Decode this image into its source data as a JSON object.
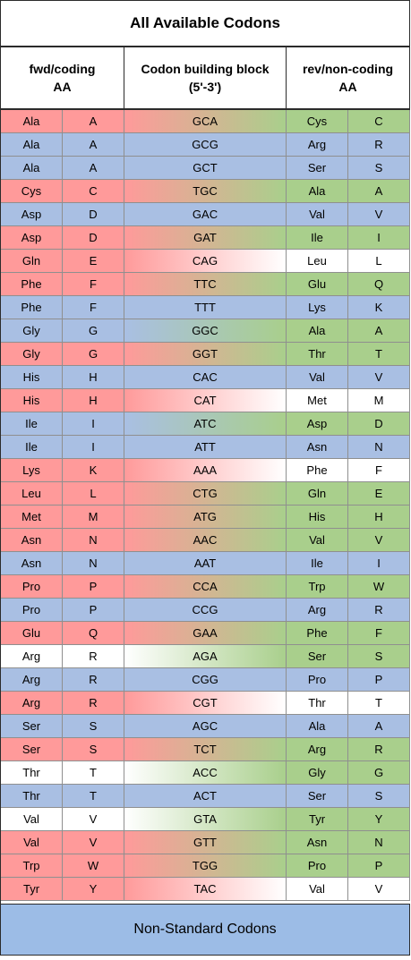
{
  "title": "All Available Codons",
  "headers": {
    "fwd_line1": "fwd/coding",
    "fwd_line2": "AA",
    "mid_line1": "Codon building block",
    "mid_line2": "(5'-3')",
    "rev_line1": "rev/non-coding",
    "rev_line2": "AA"
  },
  "colors": {
    "red": "#ff9a9a",
    "blue": "#a9bfe3",
    "green": "#a9cf8c",
    "white": "#ffffff",
    "footer": "#9cbce6"
  },
  "rows": [
    {
      "fwd_aa": "Ala",
      "fwd_code": "A",
      "codon": "GCA",
      "rev_aa": "Cys",
      "rev_code": "C",
      "fwd_color": "red",
      "rev_color": "green"
    },
    {
      "fwd_aa": "Ala",
      "fwd_code": "A",
      "codon": "GCG",
      "rev_aa": "Arg",
      "rev_code": "R",
      "fwd_color": "blue",
      "rev_color": "blue"
    },
    {
      "fwd_aa": "Ala",
      "fwd_code": "A",
      "codon": "GCT",
      "rev_aa": "Ser",
      "rev_code": "S",
      "fwd_color": "blue",
      "rev_color": "blue"
    },
    {
      "fwd_aa": "Cys",
      "fwd_code": "C",
      "codon": "TGC",
      "rev_aa": "Ala",
      "rev_code": "A",
      "fwd_color": "red",
      "rev_color": "green"
    },
    {
      "fwd_aa": "Asp",
      "fwd_code": "D",
      "codon": "GAC",
      "rev_aa": "Val",
      "rev_code": "V",
      "fwd_color": "blue",
      "rev_color": "blue"
    },
    {
      "fwd_aa": "Asp",
      "fwd_code": "D",
      "codon": "GAT",
      "rev_aa": "Ile",
      "rev_code": "I",
      "fwd_color": "red",
      "rev_color": "green"
    },
    {
      "fwd_aa": "Gln",
      "fwd_code": "E",
      "codon": "CAG",
      "rev_aa": "Leu",
      "rev_code": "L",
      "fwd_color": "red",
      "rev_color": "white"
    },
    {
      "fwd_aa": "Phe",
      "fwd_code": "F",
      "codon": "TTC",
      "rev_aa": "Glu",
      "rev_code": "Q",
      "fwd_color": "red",
      "rev_color": "green"
    },
    {
      "fwd_aa": "Phe",
      "fwd_code": "F",
      "codon": "TTT",
      "rev_aa": "Lys",
      "rev_code": "K",
      "fwd_color": "blue",
      "rev_color": "blue"
    },
    {
      "fwd_aa": "Gly",
      "fwd_code": "G",
      "codon": "GGC",
      "rev_aa": "Ala",
      "rev_code": "A",
      "fwd_color": "blue",
      "rev_color": "green"
    },
    {
      "fwd_aa": "Gly",
      "fwd_code": "G",
      "codon": "GGT",
      "rev_aa": "Thr",
      "rev_code": "T",
      "fwd_color": "red",
      "rev_color": "green"
    },
    {
      "fwd_aa": "His",
      "fwd_code": "H",
      "codon": "CAC",
      "rev_aa": "Val",
      "rev_code": "V",
      "fwd_color": "blue",
      "rev_color": "blue"
    },
    {
      "fwd_aa": "His",
      "fwd_code": "H",
      "codon": "CAT",
      "rev_aa": "Met",
      "rev_code": "M",
      "fwd_color": "red",
      "rev_color": "white"
    },
    {
      "fwd_aa": "Ile",
      "fwd_code": "I",
      "codon": "ATC",
      "rev_aa": "Asp",
      "rev_code": "D",
      "fwd_color": "blue",
      "rev_color": "green"
    },
    {
      "fwd_aa": "Ile",
      "fwd_code": "I",
      "codon": "ATT",
      "rev_aa": "Asn",
      "rev_code": "N",
      "fwd_color": "blue",
      "rev_color": "blue"
    },
    {
      "fwd_aa": "Lys",
      "fwd_code": "K",
      "codon": "AAA",
      "rev_aa": "Phe",
      "rev_code": "F",
      "fwd_color": "red",
      "rev_color": "white"
    },
    {
      "fwd_aa": "Leu",
      "fwd_code": "L",
      "codon": "CTG",
      "rev_aa": "Gln",
      "rev_code": "E",
      "fwd_color": "red",
      "rev_color": "green"
    },
    {
      "fwd_aa": "Met",
      "fwd_code": "M",
      "codon": "ATG",
      "rev_aa": "His",
      "rev_code": "H",
      "fwd_color": "red",
      "rev_color": "green"
    },
    {
      "fwd_aa": "Asn",
      "fwd_code": "N",
      "codon": "AAC",
      "rev_aa": "Val",
      "rev_code": "V",
      "fwd_color": "red",
      "rev_color": "green"
    },
    {
      "fwd_aa": "Asn",
      "fwd_code": "N",
      "codon": "AAT",
      "rev_aa": "Ile",
      "rev_code": "I",
      "fwd_color": "blue",
      "rev_color": "blue"
    },
    {
      "fwd_aa": "Pro",
      "fwd_code": "P",
      "codon": "CCA",
      "rev_aa": "Trp",
      "rev_code": "W",
      "fwd_color": "red",
      "rev_color": "green"
    },
    {
      "fwd_aa": "Pro",
      "fwd_code": "P",
      "codon": "CCG",
      "rev_aa": "Arg",
      "rev_code": "R",
      "fwd_color": "blue",
      "rev_color": "blue"
    },
    {
      "fwd_aa": "Glu",
      "fwd_code": "Q",
      "codon": "GAA",
      "rev_aa": "Phe",
      "rev_code": "F",
      "fwd_color": "red",
      "rev_color": "green"
    },
    {
      "fwd_aa": "Arg",
      "fwd_code": "R",
      "codon": "AGA",
      "rev_aa": "Ser",
      "rev_code": "S",
      "fwd_color": "white",
      "rev_color": "green"
    },
    {
      "fwd_aa": "Arg",
      "fwd_code": "R",
      "codon": "CGG",
      "rev_aa": "Pro",
      "rev_code": "P",
      "fwd_color": "blue",
      "rev_color": "blue"
    },
    {
      "fwd_aa": "Arg",
      "fwd_code": "R",
      "codon": "CGT",
      "rev_aa": "Thr",
      "rev_code": "T",
      "fwd_color": "red",
      "rev_color": "white"
    },
    {
      "fwd_aa": "Ser",
      "fwd_code": "S",
      "codon": "AGC",
      "rev_aa": "Ala",
      "rev_code": "A",
      "fwd_color": "blue",
      "rev_color": "blue"
    },
    {
      "fwd_aa": "Ser",
      "fwd_code": "S",
      "codon": "TCT",
      "rev_aa": "Arg",
      "rev_code": "R",
      "fwd_color": "red",
      "rev_color": "green"
    },
    {
      "fwd_aa": "Thr",
      "fwd_code": "T",
      "codon": "ACC",
      "rev_aa": "Gly",
      "rev_code": "G",
      "fwd_color": "white",
      "rev_color": "green"
    },
    {
      "fwd_aa": "Thr",
      "fwd_code": "T",
      "codon": "ACT",
      "rev_aa": "Ser",
      "rev_code": "S",
      "fwd_color": "blue",
      "rev_color": "blue"
    },
    {
      "fwd_aa": "Val",
      "fwd_code": "V",
      "codon": "GTA",
      "rev_aa": "Tyr",
      "rev_code": "Y",
      "fwd_color": "white",
      "rev_color": "green"
    },
    {
      "fwd_aa": "Val",
      "fwd_code": "V",
      "codon": "GTT",
      "rev_aa": "Asn",
      "rev_code": "N",
      "fwd_color": "red",
      "rev_color": "green"
    },
    {
      "fwd_aa": "Trp",
      "fwd_code": "W",
      "codon": "TGG",
      "rev_aa": "Pro",
      "rev_code": "P",
      "fwd_color": "red",
      "rev_color": "green"
    },
    {
      "fwd_aa": "Tyr",
      "fwd_code": "Y",
      "codon": "TAC",
      "rev_aa": "Val",
      "rev_code": "V",
      "fwd_color": "red",
      "rev_color": "white"
    }
  ],
  "footer": "Non-Standard Codons"
}
